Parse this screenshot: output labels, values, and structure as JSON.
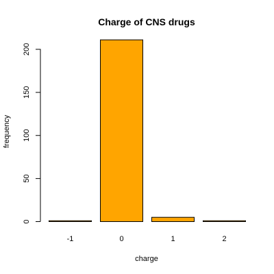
{
  "chart_data": {
    "type": "bar",
    "title": "Charge of CNS drugs",
    "xlabel": "charge",
    "ylabel": "frequency",
    "categories": [
      "-1",
      "0",
      "1",
      "2"
    ],
    "values": [
      1,
      211,
      5,
      1
    ],
    "yticks": [
      0,
      50,
      100,
      150,
      200
    ],
    "ylim": [
      0,
      220
    ],
    "bar_color": "#FFA500",
    "bar_border_color": "#000000",
    "grid": false,
    "legend": "none"
  }
}
